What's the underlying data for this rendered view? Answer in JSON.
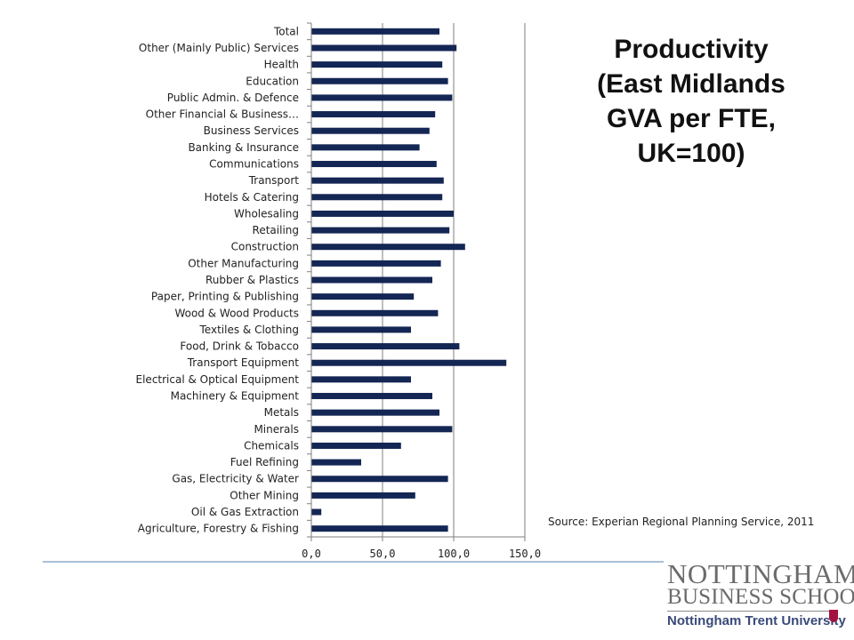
{
  "slide": {
    "title_lines": [
      "Productivity",
      "(East Midlands",
      "GVA per FTE,",
      "UK=100)"
    ],
    "source": "Source: Experian Regional Planning Service, 2011"
  },
  "logo": {
    "line1": "NOTTINGHAM",
    "line2": "BUSINESS SCHOOL",
    "line3": "Nottingham Trent University"
  },
  "colors": {
    "bar": "#142654",
    "gridline": "#7f7f7f",
    "rule": "#a9c0d9"
  },
  "chart_data": {
    "type": "bar",
    "orientation": "horizontal",
    "title": "",
    "xlabel": "",
    "ylabel": "",
    "xlim": [
      0,
      150
    ],
    "x_ticks": [
      0,
      50,
      100,
      150
    ],
    "x_tick_labels": [
      "0,0",
      "50,0",
      "100,0",
      "150,0"
    ],
    "grid": "vertical major gridlines",
    "categories": [
      "Total",
      "Other (Mainly Public) Services",
      "Health",
      "Education",
      "Public Admin. & Defence",
      "Other Financial & Business…",
      "Business Services",
      "Banking & Insurance",
      "Communications",
      "Transport",
      "Hotels & Catering",
      "Wholesaling",
      "Retailing",
      "Construction",
      "Other Manufacturing",
      "Rubber & Plastics",
      "Paper, Printing & Publishing",
      "Wood & Wood Products",
      "Textiles & Clothing",
      "Food, Drink & Tobacco",
      "Transport Equipment",
      "Electrical & Optical Equipment",
      "Machinery & Equipment",
      "Metals",
      "Minerals",
      "Chemicals",
      "Fuel Refining",
      "Gas, Electricity & Water",
      "Other Mining",
      "Oil & Gas Extraction",
      "Agriculture, Forestry & Fishing"
    ],
    "values": [
      90,
      102,
      92,
      96,
      99,
      87,
      83,
      76,
      88,
      93,
      92,
      100,
      97,
      108,
      91,
      85,
      72,
      89,
      70,
      104,
      137,
      70,
      85,
      90,
      99,
      63,
      35,
      96,
      73,
      7,
      96
    ]
  }
}
